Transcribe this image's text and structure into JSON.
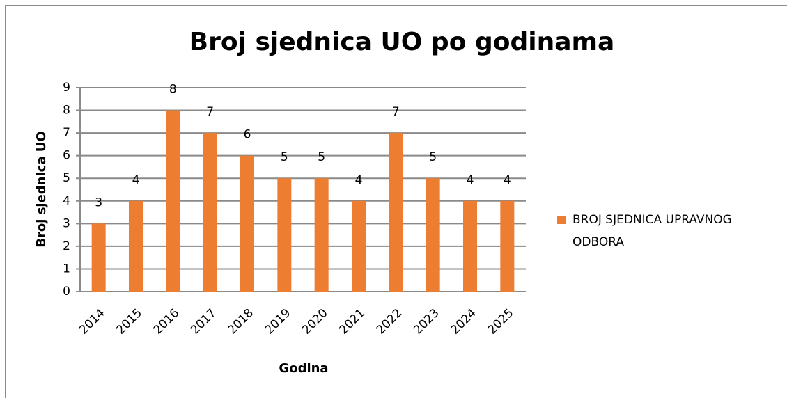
{
  "chart_data": {
    "type": "bar",
    "title": "Broj sjednica UO po godinama",
    "x_label": "Godina",
    "y_label": "Broj sjednica UO",
    "categories": [
      "2014",
      "2015",
      "2016",
      "2017",
      "2018",
      "2019",
      "2020",
      "2021",
      "2022",
      "2023",
      "2024",
      "2025"
    ],
    "series": [
      {
        "name": "BROJ SJEDNICA UPRAVNOG ODBORA",
        "color": "#ed7d31",
        "values": [
          3,
          4,
          8,
          7,
          6,
          5,
          5,
          4,
          7,
          5,
          4,
          4
        ]
      }
    ],
    "ylim": [
      0,
      9
    ],
    "yticks": [
      0,
      1,
      2,
      3,
      4,
      5,
      6,
      7,
      8,
      9
    ],
    "grid": true,
    "legend": "right",
    "data_labels": true
  }
}
